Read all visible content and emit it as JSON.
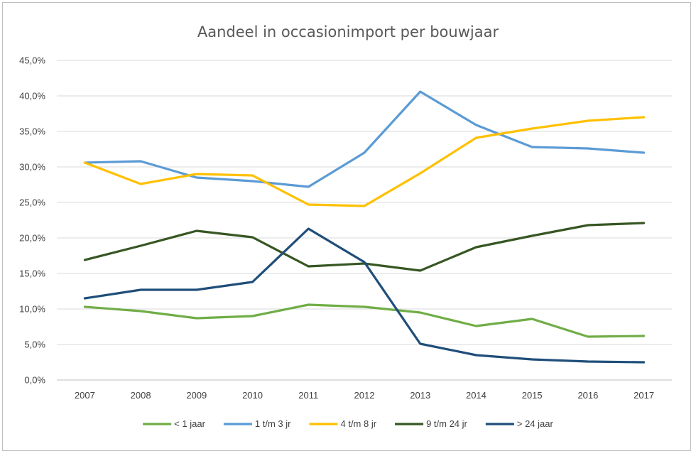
{
  "chart_data": {
    "type": "line",
    "title": "Aandeel in occasionimport per bouwjaar",
    "xlabel": "",
    "ylabel": "",
    "categories": [
      "2007",
      "2008",
      "2009",
      "2010",
      "2011",
      "2012",
      "2013",
      "2014",
      "2015",
      "2016",
      "2017"
    ],
    "ylim": [
      0,
      45
    ],
    "yticks": [
      "0,0%",
      "5,0%",
      "10,0%",
      "15,0%",
      "20,0%",
      "25,0%",
      "30,0%",
      "35,0%",
      "40,0%",
      "45,0%"
    ],
    "grid": true,
    "legend_position": "bottom",
    "series": [
      {
        "name": "< 1 jaar",
        "color": "#70ad47",
        "values": [
          10.3,
          9.7,
          8.7,
          9.0,
          10.6,
          10.3,
          9.5,
          7.6,
          8.6,
          6.1,
          6.2
        ]
      },
      {
        "name": "1 t/m 3 jr",
        "color": "#5b9bd5",
        "values": [
          30.6,
          30.8,
          28.5,
          28.0,
          27.2,
          32.0,
          40.6,
          35.9,
          32.8,
          32.6,
          32.0
        ]
      },
      {
        "name": "4 t/m 8 jr",
        "color": "#ffc000",
        "values": [
          30.6,
          27.6,
          29.0,
          28.8,
          24.7,
          24.5,
          29.1,
          34.1,
          35.4,
          36.5,
          37.0
        ]
      },
      {
        "name": "9 t/m 24 jr",
        "color": "#375623",
        "values": [
          16.9,
          18.9,
          21.0,
          20.1,
          16.0,
          16.4,
          15.4,
          18.7,
          20.3,
          21.8,
          22.1
        ]
      },
      {
        "name": "> 24 jaar",
        "color": "#1f4e79",
        "values": [
          11.5,
          12.7,
          12.7,
          13.8,
          21.3,
          16.6,
          5.1,
          3.5,
          2.9,
          2.6,
          2.5
        ]
      }
    ]
  }
}
